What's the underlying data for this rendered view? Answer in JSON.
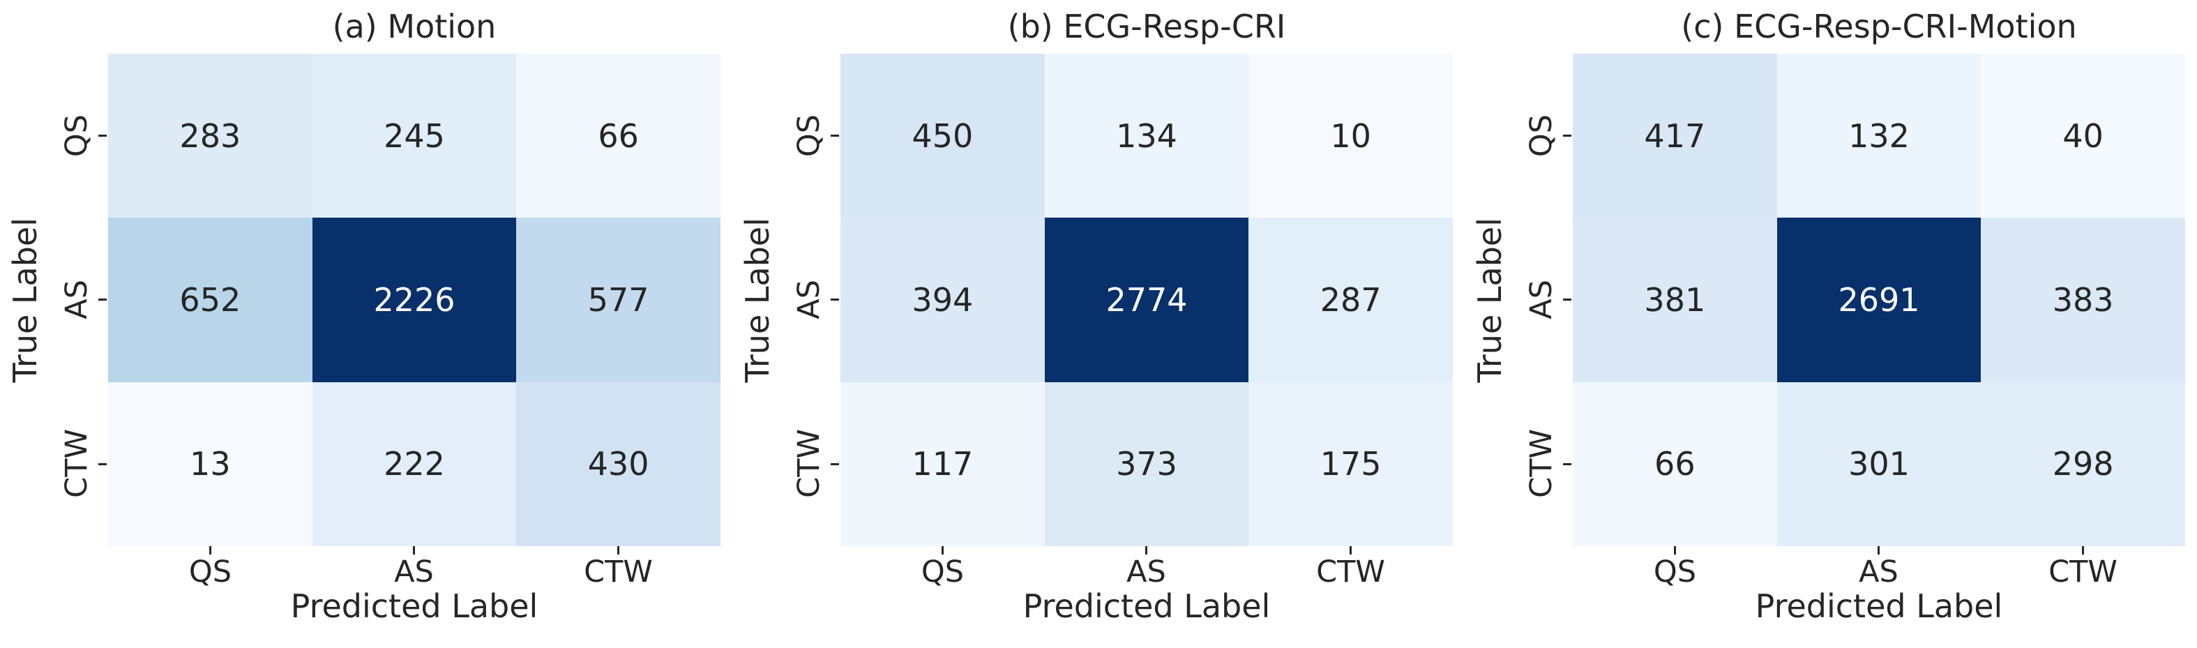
{
  "figure": {
    "background": "#ffffff",
    "text_color": "#262626"
  },
  "chart_data": {
    "type": "heatmap",
    "subtype": "confusion-matrix",
    "colormap": "Blues",
    "normalization": "per-panel max value",
    "grid": "off",
    "legend": "none",
    "xlabel": "Predicted Label",
    "ylabel": "True Label",
    "categories": [
      "QS",
      "AS",
      "CTW"
    ],
    "annotation_dark_text": "#262626",
    "annotation_light_text": "#ffffff",
    "max_cell_color": "#08306b",
    "panels": [
      {
        "title": "(a) Motion",
        "row_labels": [
          "QS",
          "AS",
          "CTW"
        ],
        "col_labels": [
          "QS",
          "AS",
          "CTW"
        ],
        "matrix": [
          [
            283,
            245,
            66
          ],
          [
            652,
            2226,
            577
          ],
          [
            13,
            222,
            430
          ]
        ],
        "cell_colors": [
          [
            "#deebf7",
            "#e1edf8",
            "#f1f7fd"
          ],
          [
            "#b8d5ea",
            "#08306b",
            "#c3daee"
          ],
          [
            "#f6faff",
            "#e3eef9",
            "#d1e2f3"
          ]
        ],
        "cell_text_colors": [
          [
            "#262626",
            "#262626",
            "#262626"
          ],
          [
            "#262626",
            "#ffffff",
            "#262626"
          ],
          [
            "#262626",
            "#262626",
            "#262626"
          ]
        ]
      },
      {
        "title": "(b) ECG-Resp-CRI",
        "row_labels": [
          "QS",
          "AS",
          "CTW"
        ],
        "col_labels": [
          "QS",
          "AS",
          "CTW"
        ],
        "matrix": [
          [
            450,
            134,
            10
          ],
          [
            394,
            2774,
            287
          ],
          [
            117,
            373,
            175
          ]
        ],
        "cell_colors": [
          [
            "#d7e6f5",
            "#edf5fc",
            "#f6faff"
          ],
          [
            "#dbe9f6",
            "#08306b",
            "#e2eef8"
          ],
          [
            "#eff6fc",
            "#dceaf6",
            "#eaf3fb"
          ]
        ],
        "cell_text_colors": [
          [
            "#262626",
            "#262626",
            "#262626"
          ],
          [
            "#262626",
            "#ffffff",
            "#262626"
          ],
          [
            "#262626",
            "#262626",
            "#262626"
          ]
        ]
      },
      {
        "title": "(c) ECG-Resp-CRI-Motion",
        "row_labels": [
          "QS",
          "AS",
          "CTW"
        ],
        "col_labels": [
          "QS",
          "AS",
          "CTW"
        ],
        "matrix": [
          [
            417,
            132,
            40
          ],
          [
            381,
            2691,
            383
          ],
          [
            66,
            301,
            298
          ]
        ],
        "cell_colors": [
          [
            "#d8e7f5",
            "#edf5fc",
            "#f4f9fe"
          ],
          [
            "#dbe9f6",
            "#08306b",
            "#dbe9f6"
          ],
          [
            "#f2f8fd",
            "#e1edf8",
            "#e1edf8"
          ]
        ],
        "cell_text_colors": [
          [
            "#262626",
            "#262626",
            "#262626"
          ],
          [
            "#262626",
            "#ffffff",
            "#262626"
          ],
          [
            "#262626",
            "#262626",
            "#262626"
          ]
        ]
      }
    ]
  }
}
